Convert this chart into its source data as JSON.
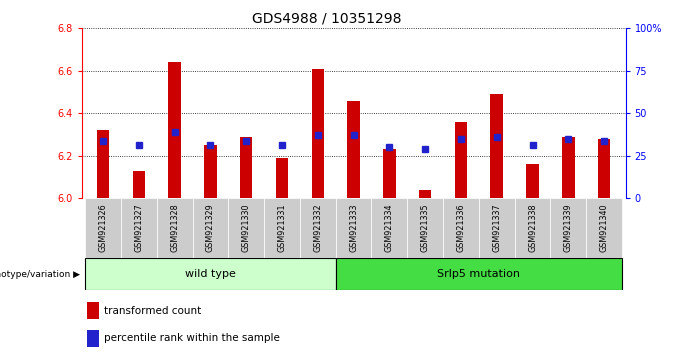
{
  "title": "GDS4988 / 10351298",
  "samples": [
    "GSM921326",
    "GSM921327",
    "GSM921328",
    "GSM921329",
    "GSM921330",
    "GSM921331",
    "GSM921332",
    "GSM921333",
    "GSM921334",
    "GSM921335",
    "GSM921336",
    "GSM921337",
    "GSM921338",
    "GSM921339",
    "GSM921340"
  ],
  "red_values": [
    6.32,
    6.13,
    6.64,
    6.25,
    6.29,
    6.19,
    6.61,
    6.46,
    6.23,
    6.04,
    6.36,
    6.49,
    6.16,
    6.29,
    6.28
  ],
  "blue_values": [
    6.27,
    6.25,
    6.31,
    6.25,
    6.27,
    6.25,
    6.3,
    6.3,
    6.24,
    6.23,
    6.28,
    6.29,
    6.25,
    6.28,
    6.27
  ],
  "ymin": 6.0,
  "ymax": 6.8,
  "yticks": [
    6.0,
    6.2,
    6.4,
    6.6,
    6.8
  ],
  "right_yticks": [
    0,
    25,
    50,
    75,
    100
  ],
  "right_ytick_labels": [
    "0",
    "25",
    "50",
    "75",
    "100%"
  ],
  "group1_label": "wild type",
  "group2_label": "Srlp5 mutation",
  "group1_indices": [
    0,
    1,
    2,
    3,
    4,
    5,
    6
  ],
  "group2_indices": [
    7,
    8,
    9,
    10,
    11,
    12,
    13,
    14
  ],
  "genotype_label": "genotype/variation",
  "legend1": "transformed count",
  "legend2": "percentile rank within the sample",
  "bar_color": "#cc0000",
  "dot_color": "#2222cc",
  "group1_bg": "#ccffcc",
  "group2_bg": "#44dd44",
  "tick_bg": "#cccccc",
  "bar_width": 0.35,
  "title_fontsize": 10,
  "label_fontsize": 8,
  "tick_fontsize": 7
}
